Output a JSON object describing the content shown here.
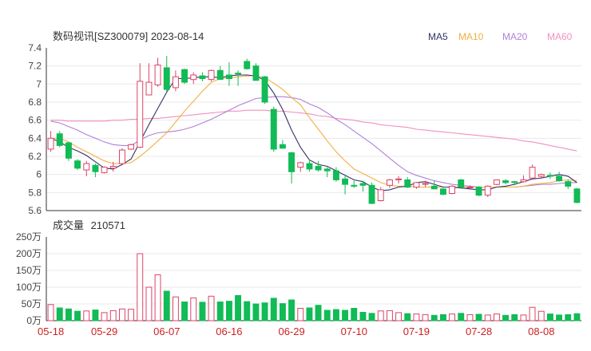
{
  "chart_data": {
    "type": "candlestick",
    "title": "数码视讯[SZ300079] 2023-08-14",
    "legend": [
      {
        "name": "MA5",
        "color": "#333366"
      },
      {
        "name": "MA10",
        "color": "#f0b040"
      },
      {
        "name": "MA20",
        "color": "#b080d8"
      },
      {
        "name": "MA60",
        "color": "#f090c0"
      }
    ],
    "price_axis": {
      "ylim": [
        5.6,
        7.4
      ],
      "ticks": [
        "7.4",
        "7.2",
        "7",
        "6.8",
        "6.6",
        "6.4",
        "6.2",
        "6",
        "5.8",
        "5.6"
      ]
    },
    "volume_axis": {
      "title": "成交量",
      "last_value": "210571",
      "ylim": [
        0,
        250
      ],
      "ticks": [
        "250万",
        "200万",
        "150万",
        "100万",
        "50万",
        "0万"
      ]
    },
    "date_ticks": [
      {
        "label": "05-18",
        "index": 0
      },
      {
        "label": "05-29",
        "index": 6
      },
      {
        "label": "06-07",
        "index": 13
      },
      {
        "label": "06-16",
        "index": 20
      },
      {
        "label": "06-29",
        "index": 27
      },
      {
        "label": "07-10",
        "index": 34
      },
      {
        "label": "07-19",
        "index": 41
      },
      {
        "label": "07-28",
        "index": 48
      },
      {
        "label": "08-08",
        "index": 55
      }
    ],
    "colors": {
      "up": "#dd4466",
      "down": "#11bb55",
      "ma5": "#333366",
      "ma10": "#f0b040",
      "ma20": "#b080d8",
      "ma60": "#f090c0"
    },
    "ohlc": [
      [
        6.28,
        6.48,
        6.25,
        6.4
      ],
      [
        6.45,
        6.48,
        6.3,
        6.32
      ],
      [
        6.35,
        6.36,
        6.15,
        6.18
      ],
      [
        6.15,
        6.17,
        6.05,
        6.07
      ],
      [
        6.05,
        6.15,
        5.98,
        6.12
      ],
      [
        6.1,
        6.12,
        5.97,
        6.03
      ],
      [
        6.02,
        6.09,
        6.01,
        6.08
      ],
      [
        6.07,
        6.14,
        6.03,
        6.09
      ],
      [
        6.12,
        6.29,
        6.1,
        6.27
      ],
      [
        6.28,
        6.34,
        6.27,
        6.33
      ],
      [
        6.3,
        7.23,
        6.29,
        7.03
      ],
      [
        6.88,
        7.23,
        6.88,
        7.02
      ],
      [
        6.99,
        7.29,
        6.97,
        7.21
      ],
      [
        7.18,
        7.31,
        6.92,
        6.94
      ],
      [
        6.96,
        7.15,
        6.92,
        7.08
      ],
      [
        7.16,
        7.17,
        7.0,
        7.02
      ],
      [
        7.05,
        7.13,
        7.0,
        7.1
      ],
      [
        7.09,
        7.13,
        7.03,
        7.06
      ],
      [
        7.05,
        7.16,
        7.03,
        7.15
      ],
      [
        7.15,
        7.2,
        7.05,
        7.05
      ],
      [
        7.1,
        7.24,
        6.98,
        7.06
      ],
      [
        7.12,
        7.15,
        6.98,
        7.11
      ],
      [
        7.25,
        7.28,
        7.16,
        7.17
      ],
      [
        7.2,
        7.23,
        7.04,
        7.04
      ],
      [
        7.08,
        7.09,
        6.78,
        6.8
      ],
      [
        6.72,
        6.75,
        6.25,
        6.28
      ],
      [
        6.33,
        6.38,
        6.29,
        6.29
      ],
      [
        6.24,
        6.25,
        5.9,
        6.03
      ],
      [
        6.08,
        6.14,
        6.03,
        6.13
      ],
      [
        6.12,
        6.17,
        6.03,
        6.06
      ],
      [
        6.09,
        6.15,
        6.03,
        6.05
      ],
      [
        6.06,
        6.08,
        5.97,
        6.04
      ],
      [
        6.04,
        6.08,
        5.92,
        5.94
      ],
      [
        5.95,
        6.0,
        5.78,
        5.89
      ],
      [
        5.88,
        5.93,
        5.85,
        5.87
      ],
      [
        5.9,
        5.93,
        5.81,
        5.88
      ],
      [
        5.88,
        5.91,
        5.67,
        5.68
      ],
      [
        5.71,
        5.86,
        5.7,
        5.83
      ],
      [
        5.88,
        5.95,
        5.85,
        5.94
      ],
      [
        5.94,
        5.98,
        5.9,
        5.95
      ],
      [
        5.94,
        5.97,
        5.85,
        5.86
      ],
      [
        5.86,
        5.91,
        5.84,
        5.91
      ],
      [
        5.9,
        5.93,
        5.86,
        5.9
      ],
      [
        5.87,
        5.93,
        5.84,
        5.84
      ],
      [
        5.84,
        5.85,
        5.77,
        5.78
      ],
      [
        5.79,
        5.88,
        5.78,
        5.87
      ],
      [
        5.94,
        5.95,
        5.85,
        5.86
      ],
      [
        5.86,
        5.88,
        5.84,
        5.86
      ],
      [
        5.86,
        5.87,
        5.76,
        5.77
      ],
      [
        5.77,
        5.88,
        5.75,
        5.87
      ],
      [
        5.89,
        5.94,
        5.88,
        5.94
      ],
      [
        5.93,
        5.95,
        5.89,
        5.91
      ],
      [
        5.92,
        5.93,
        5.88,
        5.91
      ],
      [
        5.92,
        5.99,
        5.91,
        5.94
      ],
      [
        5.96,
        6.11,
        5.94,
        6.08
      ],
      [
        5.98,
        6.01,
        5.96,
        6.0
      ],
      [
        5.99,
        6.02,
        5.95,
        5.98
      ],
      [
        5.98,
        6.03,
        5.92,
        5.93
      ],
      [
        5.92,
        5.94,
        5.84,
        5.87
      ],
      [
        5.84,
        5.85,
        5.68,
        5.69
      ]
    ],
    "volume_wan": [
      48,
      38,
      35,
      28,
      29,
      32,
      24,
      30,
      35,
      34,
      200,
      100,
      137,
      88,
      71,
      56,
      68,
      55,
      73,
      56,
      58,
      75,
      57,
      50,
      53,
      67,
      51,
      62,
      37,
      38,
      46,
      31,
      33,
      31,
      37,
      25,
      22,
      29,
      30,
      24,
      21,
      20,
      18,
      16,
      18,
      20,
      22,
      18,
      19,
      17,
      20,
      16,
      18,
      17,
      40,
      28,
      20,
      17,
      18,
      21
    ],
    "ma5": [
      6.4,
      6.36,
      6.3,
      6.26,
      6.21,
      6.14,
      6.07,
      6.06,
      6.11,
      6.17,
      6.36,
      6.55,
      6.73,
      6.91,
      7.06,
      7.06,
      7.07,
      7.08,
      7.08,
      7.07,
      7.09,
      7.1,
      7.1,
      7.09,
      7.04,
      6.9,
      6.72,
      6.49,
      6.3,
      6.16,
      6.11,
      6.09,
      6.04,
      5.99,
      5.94,
      5.92,
      5.86,
      5.82,
      5.83,
      5.86,
      5.87,
      5.91,
      5.92,
      5.89,
      5.86,
      5.86,
      5.85,
      5.84,
      5.83,
      5.83,
      5.86,
      5.87,
      5.89,
      5.92,
      5.95,
      5.96,
      5.98,
      6.0,
      5.98,
      5.91
    ],
    "ma10": [
      6.4,
      6.4,
      6.36,
      6.3,
      6.25,
      6.2,
      6.15,
      6.12,
      6.12,
      6.13,
      6.2,
      6.28,
      6.37,
      6.46,
      6.58,
      6.7,
      6.81,
      6.92,
      7.02,
      7.06,
      7.07,
      7.08,
      7.09,
      7.09,
      7.07,
      7.01,
      6.94,
      6.85,
      6.77,
      6.63,
      6.5,
      6.37,
      6.25,
      6.15,
      6.06,
      6.01,
      5.96,
      5.91,
      5.88,
      5.87,
      5.87,
      5.86,
      5.86,
      5.86,
      5.86,
      5.86,
      5.86,
      5.86,
      5.86,
      5.86,
      5.86,
      5.86,
      5.86,
      5.87,
      5.89,
      5.9,
      5.91,
      5.93,
      5.94,
      5.93
    ],
    "ma20": [
      6.59,
      6.57,
      6.53,
      6.49,
      6.44,
      6.4,
      6.36,
      6.33,
      6.32,
      6.32,
      6.38,
      6.43,
      6.46,
      6.47,
      6.48,
      6.5,
      6.53,
      6.57,
      6.61,
      6.66,
      6.71,
      6.76,
      6.8,
      6.84,
      6.85,
      6.86,
      6.86,
      6.85,
      6.83,
      6.78,
      6.74,
      6.68,
      6.61,
      6.55,
      6.48,
      6.41,
      6.34,
      6.26,
      6.18,
      6.1,
      6.03,
      5.99,
      5.96,
      5.93,
      5.91,
      5.89,
      5.88,
      5.87,
      5.86,
      5.86,
      5.86,
      5.86,
      5.86,
      5.87,
      5.88,
      5.89,
      5.89,
      5.9,
      5.91,
      5.91
    ],
    "ma60": [
      6.6,
      6.6,
      6.59,
      6.59,
      6.59,
      6.59,
      6.59,
      6.6,
      6.6,
      6.61,
      6.61,
      6.62,
      6.62,
      6.63,
      6.64,
      6.65,
      6.66,
      6.67,
      6.68,
      6.69,
      6.7,
      6.7,
      6.71,
      6.71,
      6.71,
      6.7,
      6.7,
      6.69,
      6.68,
      6.67,
      6.65,
      6.64,
      6.62,
      6.61,
      6.6,
      6.58,
      6.57,
      6.55,
      6.54,
      6.53,
      6.52,
      6.5,
      6.49,
      6.48,
      6.47,
      6.46,
      6.45,
      6.44,
      6.43,
      6.42,
      6.41,
      6.4,
      6.39,
      6.37,
      6.36,
      6.34,
      6.32,
      6.3,
      6.28,
      6.26
    ]
  }
}
